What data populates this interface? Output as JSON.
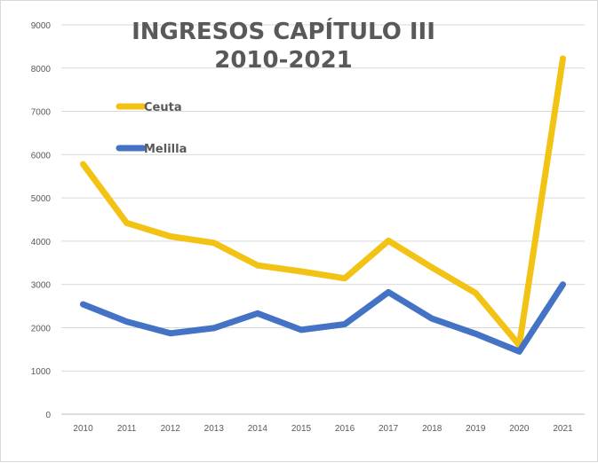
{
  "chart_data": {
    "type": "line",
    "title": "INGRESOS CAPÍTULO III",
    "subtitle": "2010-2021",
    "categories": [
      "2010",
      "2011",
      "2012",
      "2013",
      "2014",
      "2015",
      "2016",
      "2017",
      "2018",
      "2019",
      "2020",
      "2021"
    ],
    "series": [
      {
        "name": "Ceuta",
        "color": "#F2C314",
        "values": [
          5780,
          4420,
          4110,
          3960,
          3440,
          3300,
          3140,
          4010,
          3390,
          2800,
          1600,
          8220
        ]
      },
      {
        "name": "Melilla",
        "color": "#4472C4",
        "values": [
          2540,
          2140,
          1870,
          1990,
          2330,
          1950,
          2080,
          2820,
          2210,
          1860,
          1450,
          3000
        ]
      }
    ],
    "ylim": [
      0,
      9000
    ],
    "yticks": [
      0,
      1000,
      2000,
      3000,
      4000,
      5000,
      6000,
      7000,
      8000,
      9000
    ],
    "grid": true,
    "legend_position": "top-left"
  }
}
